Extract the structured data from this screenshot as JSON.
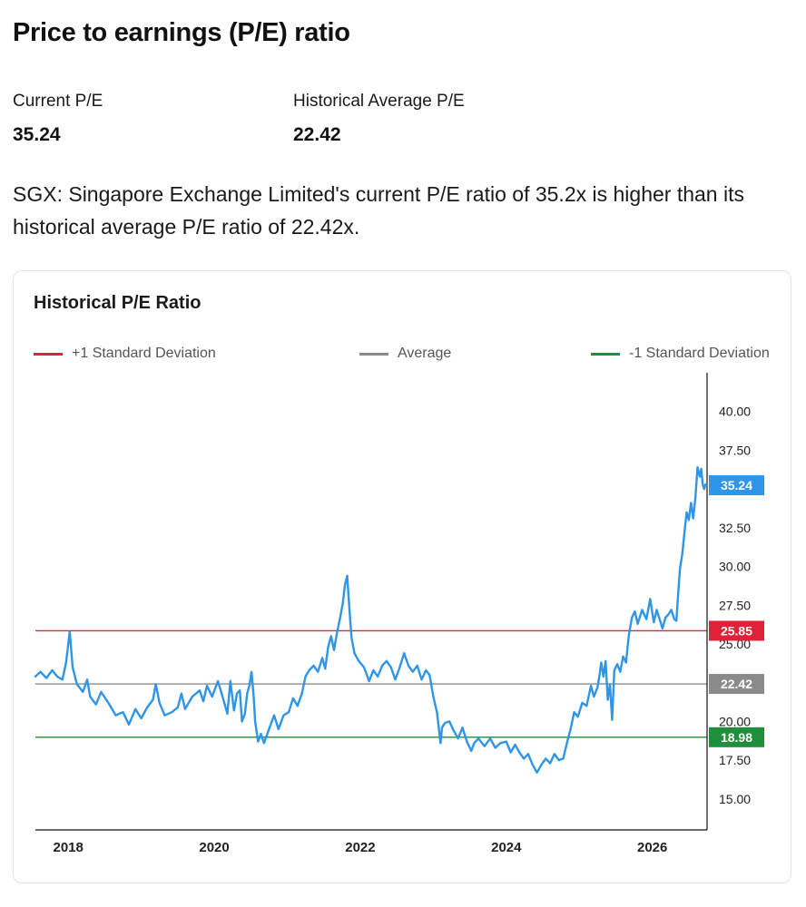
{
  "header": {
    "title": "Price to earnings (P/E) ratio"
  },
  "stats": [
    {
      "label": "Current P/E",
      "value": "35.24"
    },
    {
      "label": "Historical Average P/E",
      "value": "22.42"
    }
  ],
  "summary": "SGX: Singapore Exchange Limited's current P/E ratio of 35.2x is higher than its historical average P/E ratio of 22.42x.",
  "colors": {
    "series": "#2f95e6",
    "plus_sd": "#e0213a",
    "average": "#8a8a8a",
    "minus_sd": "#1e8f3b",
    "axis": "#111111"
  },
  "chart_data": {
    "type": "line",
    "title": "Historical P/E Ratio",
    "xlim": [
      2017.55,
      2026.75
    ],
    "ylim": [
      13.0,
      42.5
    ],
    "x_ticks": [
      2018,
      2020,
      2022,
      2024,
      2026
    ],
    "x_tick_labels": [
      "2018",
      "2020",
      "2022",
      "2024",
      "2026"
    ],
    "y_ticks": [
      15,
      17.5,
      20,
      22.5,
      25,
      27.5,
      30,
      32.5,
      35,
      37.5,
      40
    ],
    "y_tick_labels": [
      "15.00",
      "17.50",
      "20.00",
      "22.50",
      "25.00",
      "27.50",
      "30.00",
      "32.50",
      "35.00",
      "37.50",
      "40.00"
    ],
    "legend": [
      {
        "label": "+1 Standard Deviation",
        "color": "#e0213a"
      },
      {
        "label": "Average",
        "color": "#8a8a8a"
      },
      {
        "label": "-1 Standard Deviation",
        "color": "#1e8f3b"
      }
    ],
    "legend_position": "top",
    "reference_lines": [
      {
        "value": 25.85,
        "label": "25.85",
        "color": "#e0213a"
      },
      {
        "value": 22.42,
        "label": "22.42",
        "color": "#8a8a8a"
      },
      {
        "value": 18.98,
        "label": "18.98",
        "color": "#1e8f3b"
      }
    ],
    "last_value": {
      "value": 35.24,
      "label": "35.24",
      "color": "#2f95e6"
    },
    "series": [
      {
        "values": [
          [
            2017.55,
            22.9
          ],
          [
            2017.62,
            23.2
          ],
          [
            2017.7,
            22.8
          ],
          [
            2017.78,
            23.3
          ],
          [
            2017.85,
            22.9
          ],
          [
            2017.92,
            22.7
          ],
          [
            2017.97,
            23.8
          ],
          [
            2018.02,
            25.8
          ],
          [
            2018.06,
            23.5
          ],
          [
            2018.12,
            22.4
          ],
          [
            2018.2,
            21.9
          ],
          [
            2018.26,
            22.7
          ],
          [
            2018.3,
            21.6
          ],
          [
            2018.38,
            21.1
          ],
          [
            2018.45,
            21.9
          ],
          [
            2018.55,
            21.2
          ],
          [
            2018.65,
            20.4
          ],
          [
            2018.75,
            20.6
          ],
          [
            2018.83,
            19.8
          ],
          [
            2018.92,
            20.8
          ],
          [
            2019.0,
            20.2
          ],
          [
            2019.08,
            20.9
          ],
          [
            2019.16,
            21.4
          ],
          [
            2019.2,
            22.4
          ],
          [
            2019.25,
            21.2
          ],
          [
            2019.32,
            20.4
          ],
          [
            2019.42,
            20.6
          ],
          [
            2019.5,
            20.9
          ],
          [
            2019.55,
            21.8
          ],
          [
            2019.6,
            20.8
          ],
          [
            2019.7,
            21.6
          ],
          [
            2019.8,
            22.0
          ],
          [
            2019.85,
            21.3
          ],
          [
            2019.9,
            22.3
          ],
          [
            2019.97,
            21.6
          ],
          [
            2020.05,
            22.6
          ],
          [
            2020.12,
            21.5
          ],
          [
            2020.18,
            20.5
          ],
          [
            2020.22,
            22.6
          ],
          [
            2020.27,
            20.7
          ],
          [
            2020.31,
            21.8
          ],
          [
            2020.35,
            22.0
          ],
          [
            2020.38,
            20.0
          ],
          [
            2020.42,
            20.5
          ],
          [
            2020.45,
            21.8
          ],
          [
            2020.48,
            22.3
          ],
          [
            2020.51,
            23.2
          ],
          [
            2020.54,
            21.6
          ],
          [
            2020.56,
            20.0
          ],
          [
            2020.6,
            18.7
          ],
          [
            2020.64,
            19.2
          ],
          [
            2020.68,
            18.6
          ],
          [
            2020.75,
            19.5
          ],
          [
            2020.82,
            20.4
          ],
          [
            2020.88,
            19.5
          ],
          [
            2020.95,
            20.4
          ],
          [
            2021.02,
            20.6
          ],
          [
            2021.08,
            21.5
          ],
          [
            2021.14,
            21.0
          ],
          [
            2021.2,
            21.8
          ],
          [
            2021.25,
            22.9
          ],
          [
            2021.3,
            23.3
          ],
          [
            2021.36,
            23.6
          ],
          [
            2021.42,
            23.2
          ],
          [
            2021.48,
            24.1
          ],
          [
            2021.52,
            23.4
          ],
          [
            2021.56,
            24.8
          ],
          [
            2021.6,
            25.5
          ],
          [
            2021.64,
            24.6
          ],
          [
            2021.68,
            25.7
          ],
          [
            2021.72,
            26.6
          ],
          [
            2021.76,
            27.6
          ],
          [
            2021.79,
            28.8
          ],
          [
            2021.82,
            29.4
          ],
          [
            2021.85,
            27.3
          ],
          [
            2021.88,
            25.4
          ],
          [
            2021.92,
            24.4
          ],
          [
            2021.98,
            23.9
          ],
          [
            2022.05,
            23.5
          ],
          [
            2022.12,
            22.6
          ],
          [
            2022.18,
            23.3
          ],
          [
            2022.24,
            22.9
          ],
          [
            2022.3,
            23.6
          ],
          [
            2022.36,
            23.9
          ],
          [
            2022.42,
            23.5
          ],
          [
            2022.48,
            22.7
          ],
          [
            2022.54,
            23.5
          ],
          [
            2022.6,
            24.4
          ],
          [
            2022.66,
            23.6
          ],
          [
            2022.72,
            23.2
          ],
          [
            2022.78,
            23.6
          ],
          [
            2022.84,
            22.7
          ],
          [
            2022.9,
            23.3
          ],
          [
            2022.95,
            23.0
          ],
          [
            2023.0,
            21.6
          ],
          [
            2023.05,
            20.6
          ],
          [
            2023.08,
            19.4
          ],
          [
            2023.1,
            18.6
          ],
          [
            2023.12,
            19.6
          ],
          [
            2023.16,
            19.9
          ],
          [
            2023.22,
            20.0
          ],
          [
            2023.28,
            19.4
          ],
          [
            2023.34,
            18.9
          ],
          [
            2023.4,
            19.6
          ],
          [
            2023.46,
            18.7
          ],
          [
            2023.52,
            18.1
          ],
          [
            2023.56,
            18.6
          ],
          [
            2023.62,
            18.9
          ],
          [
            2023.7,
            18.4
          ],
          [
            2023.78,
            18.9
          ],
          [
            2023.85,
            18.3
          ],
          [
            2023.92,
            18.6
          ],
          [
            2024.0,
            18.7
          ],
          [
            2024.06,
            18.0
          ],
          [
            2024.12,
            18.5
          ],
          [
            2024.18,
            18.0
          ],
          [
            2024.24,
            17.6
          ],
          [
            2024.3,
            17.9
          ],
          [
            2024.36,
            17.2
          ],
          [
            2024.42,
            16.7
          ],
          [
            2024.48,
            17.2
          ],
          [
            2024.54,
            17.6
          ],
          [
            2024.6,
            17.3
          ],
          [
            2024.66,
            17.9
          ],
          [
            2024.72,
            17.5
          ],
          [
            2024.78,
            17.6
          ],
          [
            2024.83,
            18.6
          ],
          [
            2024.88,
            19.5
          ],
          [
            2024.93,
            20.6
          ],
          [
            2024.98,
            20.3
          ],
          [
            2025.04,
            21.2
          ],
          [
            2025.1,
            21.0
          ],
          [
            2025.16,
            22.3
          ],
          [
            2025.2,
            21.6
          ],
          [
            2025.25,
            22.2
          ],
          [
            2025.28,
            23.1
          ],
          [
            2025.3,
            23.8
          ],
          [
            2025.33,
            22.9
          ],
          [
            2025.36,
            23.9
          ],
          [
            2025.39,
            21.4
          ],
          [
            2025.42,
            22.4
          ],
          [
            2025.45,
            20.1
          ],
          [
            2025.48,
            23.3
          ],
          [
            2025.52,
            23.7
          ],
          [
            2025.56,
            23.2
          ],
          [
            2025.6,
            24.2
          ],
          [
            2025.64,
            23.8
          ],
          [
            2025.68,
            25.6
          ],
          [
            2025.72,
            26.7
          ],
          [
            2025.76,
            27.1
          ],
          [
            2025.8,
            26.3
          ],
          [
            2025.86,
            27.2
          ],
          [
            2025.92,
            26.6
          ],
          [
            2025.97,
            27.9
          ],
          [
            2026.02,
            26.4
          ],
          [
            2026.06,
            27.2
          ],
          [
            2026.1,
            26.6
          ],
          [
            2026.14,
            26.0
          ],
          [
            2026.18,
            26.7
          ],
          [
            2026.22,
            26.9
          ],
          [
            2026.26,
            27.2
          ],
          [
            2026.3,
            26.6
          ],
          [
            2026.33,
            26.5
          ],
          [
            2026.36,
            28.6
          ],
          [
            2026.38,
            29.9
          ],
          [
            2026.41,
            30.8
          ],
          [
            2026.44,
            32.2
          ],
          [
            2026.47,
            33.5
          ],
          [
            2026.5,
            33.0
          ],
          [
            2026.53,
            34.1
          ],
          [
            2026.56,
            33.1
          ],
          [
            2026.59,
            34.4
          ],
          [
            2026.62,
            36.4
          ],
          [
            2026.65,
            35.8
          ],
          [
            2026.67,
            36.3
          ],
          [
            2026.69,
            35.3
          ],
          [
            2026.71,
            35.0
          ],
          [
            2026.73,
            35.3
          ],
          [
            2026.75,
            35.24
          ]
        ]
      }
    ]
  }
}
